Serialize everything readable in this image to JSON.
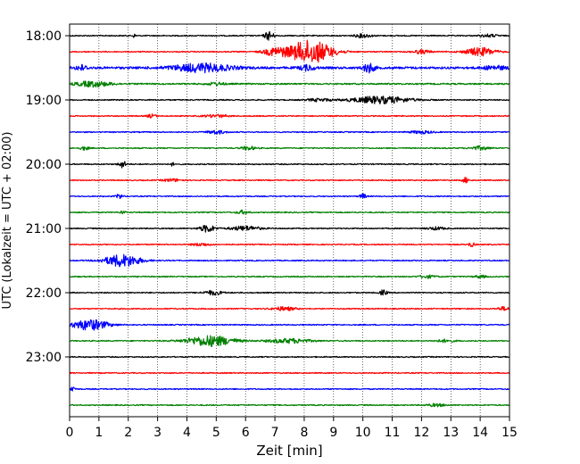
{
  "chart_data": {
    "type": "line",
    "title": "",
    "xlabel": "Zeit  [min]",
    "ylabel": "UTC (Lokalzeit = UTC + 02:00)",
    "xlim": [
      0,
      15
    ],
    "x_ticks": [
      "0",
      "1",
      "2",
      "3",
      "4",
      "5",
      "6",
      "7",
      "8",
      "9",
      "10",
      "11",
      "12",
      "13",
      "14",
      "15"
    ],
    "y_tick_labels": [
      "18:00",
      "19:00",
      "20:00",
      "21:00",
      "22:00",
      "23:00"
    ],
    "grid": {
      "x": true,
      "y": false,
      "style": "dotted"
    },
    "trace_colors": [
      "#000000",
      "#ff0000",
      "#0000ff",
      "#008000"
    ],
    "traces": [
      {
        "start": "18:00",
        "color": "#000000",
        "amp": 0.6,
        "events": [
          {
            "t": 6.8,
            "a": 5,
            "w": 0.15
          },
          {
            "t": 2.2,
            "a": 2,
            "w": 0.05
          },
          {
            "t": 10,
            "a": 2,
            "w": 0.3
          },
          {
            "t": 14.3,
            "a": 1.5,
            "w": 0.3
          }
        ]
      },
      {
        "start": "18:15",
        "color": "#ff0000",
        "amp": 0.6,
        "events": [
          {
            "t": 8.2,
            "a": 13,
            "w": 0.75
          },
          {
            "t": 7,
            "a": 4,
            "w": 0.4
          },
          {
            "t": 14,
            "a": 4.5,
            "w": 0.5
          },
          {
            "t": 12,
            "a": 2,
            "w": 0.3
          }
        ]
      },
      {
        "start": "18:30",
        "color": "#0000ff",
        "amp": 1.2,
        "events": [
          {
            "t": 0.4,
            "a": 3,
            "w": 0.2
          },
          {
            "t": 4.5,
            "a": 4.5,
            "w": 1
          },
          {
            "t": 10.2,
            "a": 5,
            "w": 0.2
          },
          {
            "t": 8.1,
            "a": 3,
            "w": 0.25
          },
          {
            "t": 14.5,
            "a": 2,
            "w": 0.4
          }
        ]
      },
      {
        "start": "18:45",
        "color": "#008000",
        "amp": 0.8,
        "events": [
          {
            "t": 0.8,
            "a": 3,
            "w": 0.6
          },
          {
            "t": 5,
            "a": 1.5,
            "w": 0.3
          }
        ]
      },
      {
        "start": "19:00",
        "color": "#000000",
        "amp": 0.6,
        "events": [
          {
            "t": 10.6,
            "a": 4,
            "w": 1
          },
          {
            "t": 8.5,
            "a": 1.5,
            "w": 0.4
          }
        ]
      },
      {
        "start": "19:15",
        "color": "#ff0000",
        "amp": 0.6,
        "events": [
          {
            "t": 2.8,
            "a": 2,
            "w": 0.15
          },
          {
            "t": 5,
            "a": 1.5,
            "w": 0.4
          }
        ]
      },
      {
        "start": "19:30",
        "color": "#0000ff",
        "amp": 0.6,
        "events": [
          {
            "t": 5,
            "a": 2,
            "w": 0.3
          },
          {
            "t": 12,
            "a": 1.5,
            "w": 0.4
          }
        ]
      },
      {
        "start": "19:45",
        "color": "#008000",
        "amp": 0.6,
        "events": [
          {
            "t": 0.5,
            "a": 2,
            "w": 0.15
          },
          {
            "t": 6.1,
            "a": 2,
            "w": 0.25
          },
          {
            "t": 14,
            "a": 2,
            "w": 0.3
          }
        ]
      },
      {
        "start": "20:00",
        "color": "#000000",
        "amp": 0.6,
        "events": [
          {
            "t": 1.8,
            "a": 4,
            "w": 0.12
          },
          {
            "t": 3.5,
            "a": 2,
            "w": 0.05
          }
        ]
      },
      {
        "start": "20:15",
        "color": "#ff0000",
        "amp": 0.6,
        "events": [
          {
            "t": 3.5,
            "a": 1.5,
            "w": 0.3
          },
          {
            "t": 13.5,
            "a": 3,
            "w": 0.1
          }
        ]
      },
      {
        "start": "20:30",
        "color": "#0000ff",
        "amp": 0.6,
        "events": [
          {
            "t": 1.7,
            "a": 3,
            "w": 0.1
          },
          {
            "t": 10,
            "a": 3,
            "w": 0.1
          }
        ]
      },
      {
        "start": "20:45",
        "color": "#008000",
        "amp": 0.6,
        "events": [
          {
            "t": 5.9,
            "a": 2,
            "w": 0.2
          },
          {
            "t": 1.8,
            "a": 1.5,
            "w": 0.1
          }
        ]
      },
      {
        "start": "21:00",
        "color": "#000000",
        "amp": 0.6,
        "events": [
          {
            "t": 4.7,
            "a": 4,
            "w": 0.25
          },
          {
            "t": 6,
            "a": 2.5,
            "w": 0.5
          },
          {
            "t": 12.5,
            "a": 1.5,
            "w": 0.3
          }
        ]
      },
      {
        "start": "21:15",
        "color": "#ff0000",
        "amp": 0.6,
        "events": [
          {
            "t": 13.7,
            "a": 2.5,
            "w": 0.1
          },
          {
            "t": 4.5,
            "a": 1.5,
            "w": 0.3
          }
        ]
      },
      {
        "start": "21:30",
        "color": "#0000ff",
        "amp": 0.6,
        "events": [
          {
            "t": 1.8,
            "a": 7,
            "w": 0.6
          }
        ]
      },
      {
        "start": "21:45",
        "color": "#008000",
        "amp": 0.6,
        "events": [
          {
            "t": 12.2,
            "a": 1.5,
            "w": 0.3
          },
          {
            "t": 14,
            "a": 1.5,
            "w": 0.2
          }
        ]
      },
      {
        "start": "22:00",
        "color": "#000000",
        "amp": 0.6,
        "events": [
          {
            "t": 4.9,
            "a": 2.5,
            "w": 0.3
          },
          {
            "t": 10.7,
            "a": 3,
            "w": 0.12
          }
        ]
      },
      {
        "start": "22:15",
        "color": "#ff0000",
        "amp": 0.6,
        "events": [
          {
            "t": 7.3,
            "a": 2,
            "w": 0.4
          },
          {
            "t": 14.8,
            "a": 2,
            "w": 0.2
          }
        ]
      },
      {
        "start": "22:30",
        "color": "#0000ff",
        "amp": 0.6,
        "events": [
          {
            "t": 0.7,
            "a": 6,
            "w": 0.6
          }
        ]
      },
      {
        "start": "22:45",
        "color": "#008000",
        "amp": 0.6,
        "events": [
          {
            "t": 4.8,
            "a": 6,
            "w": 0.8
          },
          {
            "t": 7.5,
            "a": 2.5,
            "w": 0.7
          },
          {
            "t": 12.8,
            "a": 1.5,
            "w": 0.3
          }
        ]
      },
      {
        "start": "23:00",
        "color": "#000000",
        "amp": 0.6,
        "events": []
      },
      {
        "start": "23:15",
        "color": "#ff0000",
        "amp": 0.6,
        "events": []
      },
      {
        "start": "23:30",
        "color": "#0000ff",
        "amp": 0.6,
        "events": [
          {
            "t": 0.1,
            "a": 3,
            "w": 0.1
          }
        ]
      },
      {
        "start": "23:45",
        "color": "#008000",
        "amp": 0.6,
        "events": [
          {
            "t": 12.5,
            "a": 1.5,
            "w": 0.3
          }
        ]
      }
    ]
  }
}
